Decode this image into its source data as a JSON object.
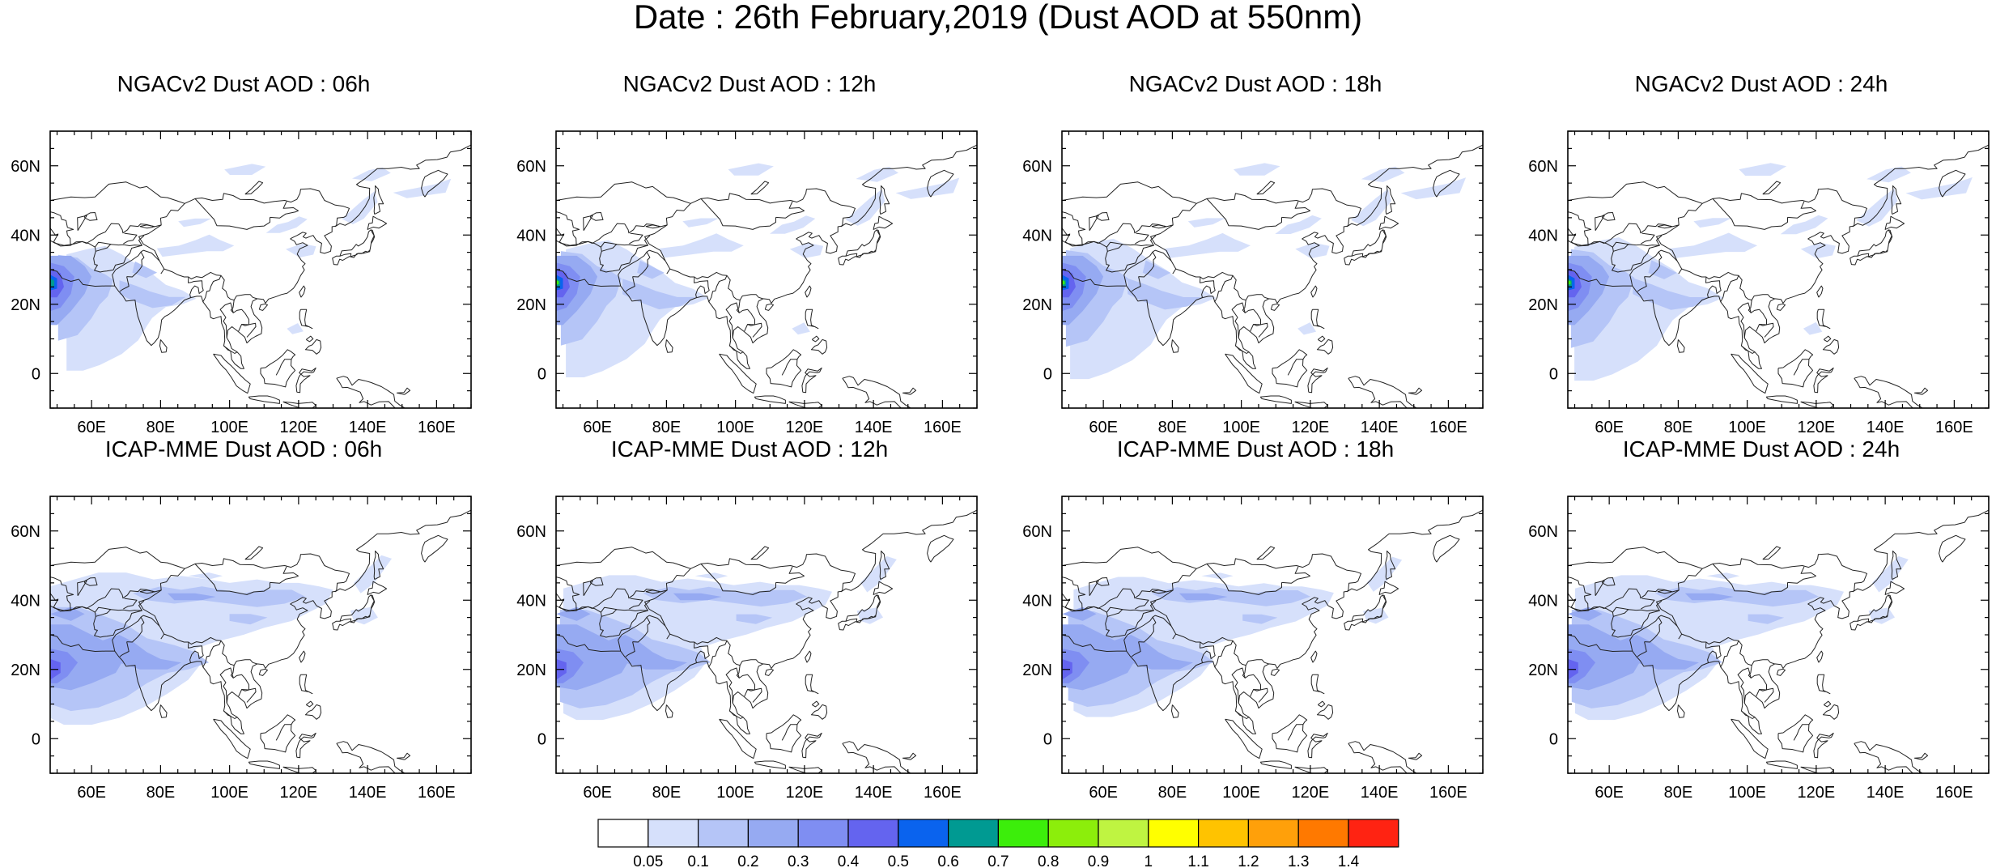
{
  "title": "Date : 26th February,2019 (Dust AOD at 550nm)",
  "panels": [
    {
      "title": "NGACv2 Dust AOD : 06h",
      "variant": "ngac",
      "core": 0.9,
      "ext": 0.8
    },
    {
      "title": "NGACv2 Dust AOD : 12h",
      "variant": "ngac",
      "core": 1.0,
      "ext": 0.88
    },
    {
      "title": "NGACv2 Dust AOD : 18h",
      "variant": "ngac",
      "core": 1.0,
      "ext": 0.9
    },
    {
      "title": "NGACv2 Dust AOD : 24h",
      "variant": "ngac",
      "core": 0.95,
      "ext": 0.92
    },
    {
      "title": "ICAP-MME Dust AOD : 06h",
      "variant": "icap",
      "core": 0.85,
      "ext": 1.0
    },
    {
      "title": "ICAP-MME Dust AOD : 12h",
      "variant": "icap",
      "core": 0.85,
      "ext": 0.95
    },
    {
      "title": "ICAP-MME Dust AOD : 18h",
      "variant": "icap",
      "core": 0.8,
      "ext": 0.92
    },
    {
      "title": "ICAP-MME Dust AOD : 24h",
      "variant": "icap",
      "core": 0.75,
      "ext": 0.95
    }
  ],
  "axes": {
    "lon_range": [
      48,
      170
    ],
    "lat_range": [
      -10,
      70
    ],
    "lon_ticks": [
      60,
      80,
      100,
      120,
      140,
      160
    ],
    "lon_tick_labels": [
      "60E",
      "80E",
      "100E",
      "120E",
      "140E",
      "160E"
    ],
    "lat_ticks": [
      0,
      20,
      40,
      60
    ],
    "lat_tick_labels": [
      "0",
      "20N",
      "40N",
      "60N"
    ]
  },
  "colorbar": {
    "labels": [
      "0.05",
      "0.1",
      "0.2",
      "0.3",
      "0.4",
      "0.5",
      "0.6",
      "0.7",
      "0.8",
      "0.9",
      "1",
      "1.1",
      "1.2",
      "1.3",
      "1.4"
    ],
    "colors": [
      "#ffffff",
      "#d6e0fb",
      "#b5c5f7",
      "#96aaf2",
      "#7f8ef2",
      "#6464ef",
      "#0a63ee",
      "#009a92",
      "#3cee0b",
      "#8cee0b",
      "#bff441",
      "#ffff00",
      "#ffc300",
      "#ffa00a",
      "#ff7900",
      "#ff2312"
    ]
  }
}
